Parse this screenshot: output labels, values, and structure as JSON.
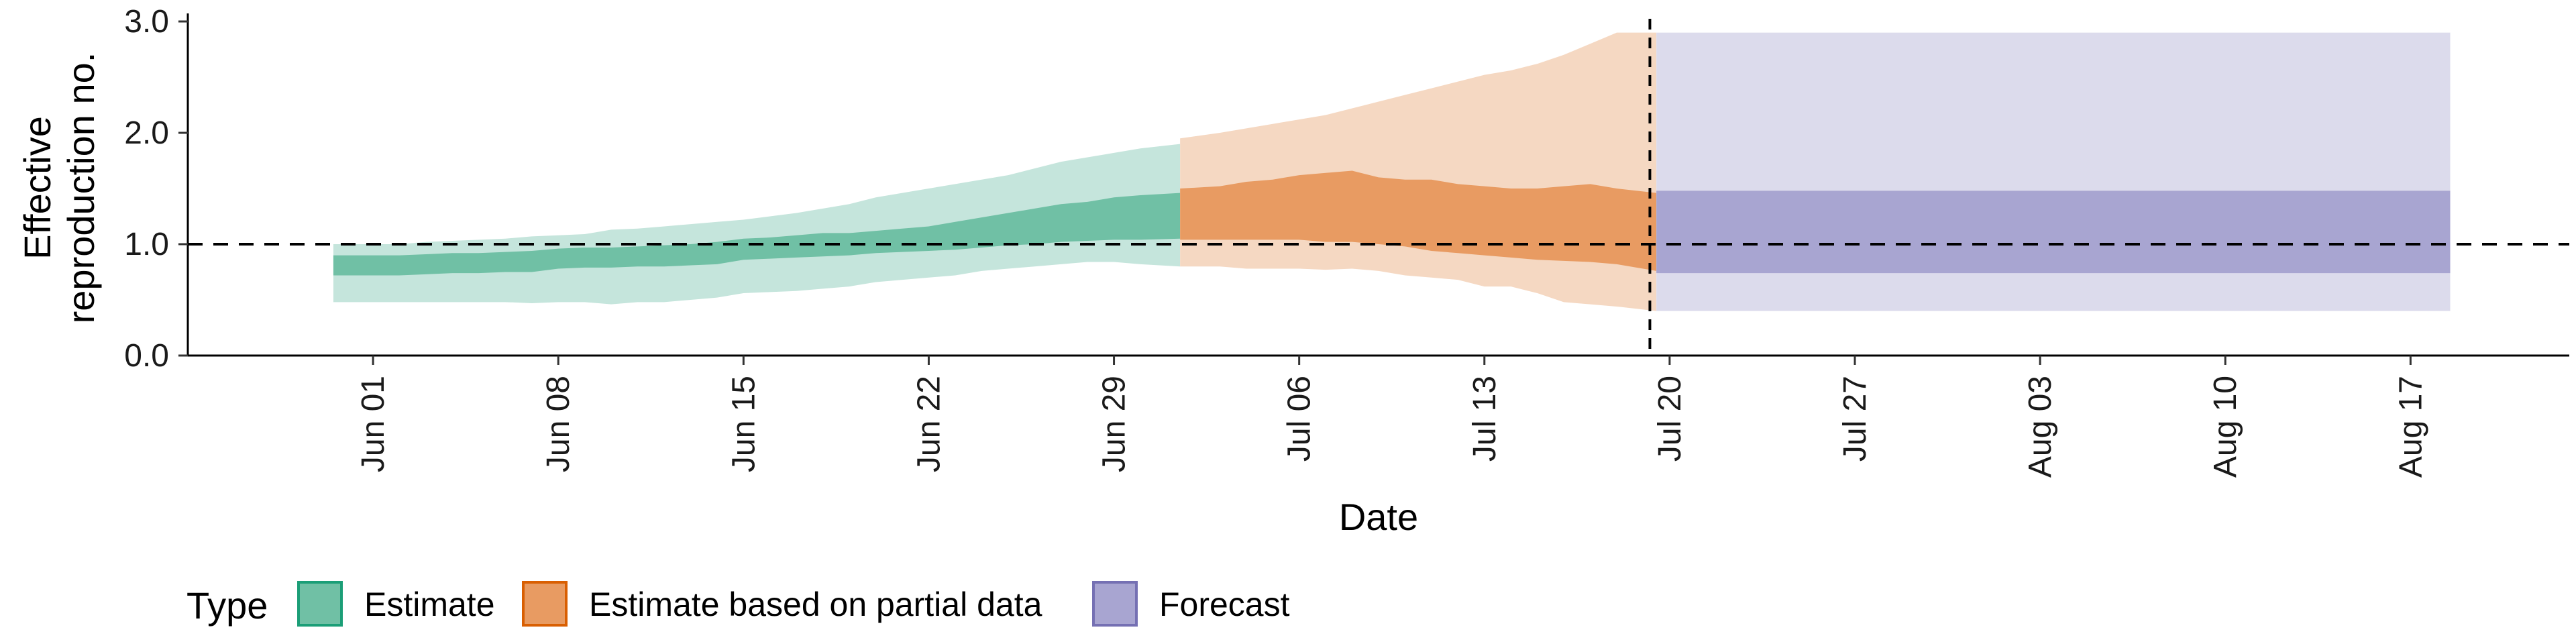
{
  "chart_data": {
    "type": "area",
    "xlabel": "Date",
    "ylabel_lines": [
      "Effective",
      "reproduction no."
    ],
    "xlim": [
      "2020-05-25",
      "2020-08-23"
    ],
    "ylim": [
      0,
      3
    ],
    "y_ticks": [
      {
        "value": 0,
        "label": "0.0"
      },
      {
        "value": 1,
        "label": "1.0"
      },
      {
        "value": 2,
        "label": "2.0"
      },
      {
        "value": 3,
        "label": "3.0"
      }
    ],
    "x_ticks": [
      {
        "date": "2020-06-01",
        "label": "Jun 01"
      },
      {
        "date": "2020-06-08",
        "label": "Jun 08"
      },
      {
        "date": "2020-06-15",
        "label": "Jun 15"
      },
      {
        "date": "2020-06-22",
        "label": "Jun 22"
      },
      {
        "date": "2020-06-29",
        "label": "Jun 29"
      },
      {
        "date": "2020-07-06",
        "label": "Jul 06"
      },
      {
        "date": "2020-07-13",
        "label": "Jul 13"
      },
      {
        "date": "2020-07-20",
        "label": "Jul 20"
      },
      {
        "date": "2020-07-27",
        "label": "Jul 27"
      },
      {
        "date": "2020-08-03",
        "label": "Aug 03"
      },
      {
        "date": "2020-08-10",
        "label": "Aug 10"
      },
      {
        "date": "2020-08-17",
        "label": "Aug 17"
      }
    ],
    "reference_line_y": 1.0,
    "forecast_start_date": "2020-07-19",
    "grid": false,
    "legend_title": "Type",
    "legend_position": "bottom",
    "series": [
      {
        "name": "Estimate",
        "color": "#1b9e77",
        "outer_fill": "#c5e5dc",
        "inner_fill": "#70c0a5",
        "dates": [
          "2020-05-31",
          "2020-06-01",
          "2020-06-02",
          "2020-06-03",
          "2020-06-04",
          "2020-06-05",
          "2020-06-06",
          "2020-06-07",
          "2020-06-08",
          "2020-06-09",
          "2020-06-10",
          "2020-06-11",
          "2020-06-12",
          "2020-06-13",
          "2020-06-14",
          "2020-06-15",
          "2020-06-16",
          "2020-06-17",
          "2020-06-18",
          "2020-06-19",
          "2020-06-20",
          "2020-06-21",
          "2020-06-22",
          "2020-06-23",
          "2020-06-24",
          "2020-06-25",
          "2020-06-26",
          "2020-06-27",
          "2020-06-28",
          "2020-06-29",
          "2020-06-30",
          "2020-07-01"
        ],
        "lower_90": [
          0.48,
          0.48,
          0.48,
          0.48,
          0.48,
          0.48,
          0.48,
          0.47,
          0.48,
          0.48,
          0.46,
          0.48,
          0.48,
          0.5,
          0.52,
          0.56,
          0.57,
          0.58,
          0.6,
          0.62,
          0.66,
          0.68,
          0.7,
          0.72,
          0.76,
          0.78,
          0.8,
          0.82,
          0.84,
          0.84,
          0.82,
          0.8
        ],
        "upper_90": [
          1.0,
          1.0,
          1.0,
          1.02,
          1.03,
          1.04,
          1.05,
          1.07,
          1.08,
          1.09,
          1.13,
          1.14,
          1.16,
          1.18,
          1.2,
          1.22,
          1.25,
          1.28,
          1.32,
          1.36,
          1.42,
          1.46,
          1.5,
          1.54,
          1.58,
          1.62,
          1.68,
          1.74,
          1.78,
          1.82,
          1.86,
          1.9
        ],
        "lower_50": [
          0.72,
          0.72,
          0.72,
          0.73,
          0.74,
          0.74,
          0.75,
          0.75,
          0.78,
          0.79,
          0.79,
          0.8,
          0.8,
          0.81,
          0.82,
          0.86,
          0.87,
          0.88,
          0.89,
          0.9,
          0.92,
          0.93,
          0.94,
          0.95,
          0.97,
          0.99,
          1.0,
          1.02,
          1.03,
          1.04,
          1.04,
          1.05
        ],
        "upper_50": [
          0.9,
          0.9,
          0.9,
          0.91,
          0.92,
          0.92,
          0.93,
          0.94,
          0.96,
          0.97,
          0.97,
          0.98,
          0.99,
          1.0,
          1.02,
          1.05,
          1.06,
          1.08,
          1.1,
          1.1,
          1.12,
          1.14,
          1.16,
          1.2,
          1.24,
          1.28,
          1.32,
          1.36,
          1.38,
          1.42,
          1.44,
          1.46
        ]
      },
      {
        "name": "Estimate based on partial data",
        "color": "#d95f02",
        "outer_fill": "#f5d8c2",
        "inner_fill": "#e89b62",
        "dates": [
          "2020-07-02",
          "2020-07-03",
          "2020-07-04",
          "2020-07-05",
          "2020-07-06",
          "2020-07-07",
          "2020-07-08",
          "2020-07-09",
          "2020-07-10",
          "2020-07-11",
          "2020-07-12",
          "2020-07-13",
          "2020-07-14",
          "2020-07-15",
          "2020-07-16",
          "2020-07-17",
          "2020-07-18",
          "2020-07-19"
        ],
        "lower_90": [
          0.8,
          0.8,
          0.78,
          0.78,
          0.78,
          0.77,
          0.78,
          0.76,
          0.72,
          0.7,
          0.68,
          0.62,
          0.62,
          0.56,
          0.48,
          0.46,
          0.44,
          0.4
        ],
        "upper_90": [
          1.95,
          2.0,
          2.04,
          2.08,
          2.12,
          2.16,
          2.22,
          2.28,
          2.34,
          2.4,
          2.46,
          2.52,
          2.56,
          2.62,
          2.7,
          2.8,
          2.9,
          2.9
        ],
        "lower_50": [
          1.04,
          1.04,
          1.04,
          1.04,
          1.04,
          1.02,
          1.02,
          1.0,
          0.98,
          0.94,
          0.92,
          0.9,
          0.88,
          0.86,
          0.85,
          0.84,
          0.82,
          0.76
        ],
        "upper_50": [
          1.5,
          1.52,
          1.56,
          1.58,
          1.62,
          1.64,
          1.66,
          1.6,
          1.58,
          1.58,
          1.54,
          1.52,
          1.5,
          1.5,
          1.52,
          1.54,
          1.5,
          1.46
        ]
      },
      {
        "name": "Forecast",
        "color": "#7570b3",
        "outer_fill": "#dcdbec",
        "inner_fill": "#a8a5d1",
        "dates": [
          "2020-07-20",
          "2020-08-18"
        ],
        "lower_90": [
          0.4,
          0.4
        ],
        "upper_90": [
          2.9,
          2.9
        ],
        "lower_50": [
          0.74,
          0.74
        ],
        "upper_50": [
          1.48,
          1.48
        ]
      }
    ]
  }
}
